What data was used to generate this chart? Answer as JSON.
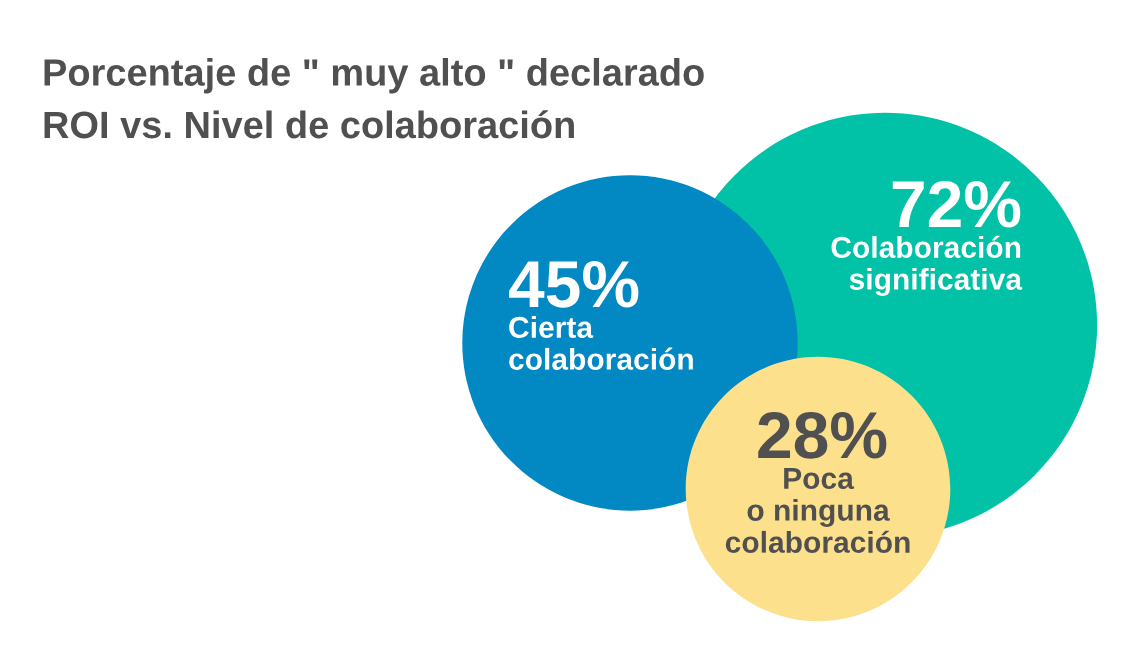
{
  "chart_data": {
    "type": "other",
    "title": "Porcentaje de \" muy alto \" declarado\nROI vs. Nivel de colaboración",
    "categories": [
      "Cierta\ncolaboración",
      "Colaboración\nsignificativa",
      "Poca\no ninguna\ncolaboración"
    ],
    "values": [
      45,
      72,
      28
    ],
    "colors": [
      "#0288c3",
      "#01c2a6",
      "#fde08c"
    ],
    "value_labels": [
      "45%",
      "72%",
      "28%"
    ]
  }
}
